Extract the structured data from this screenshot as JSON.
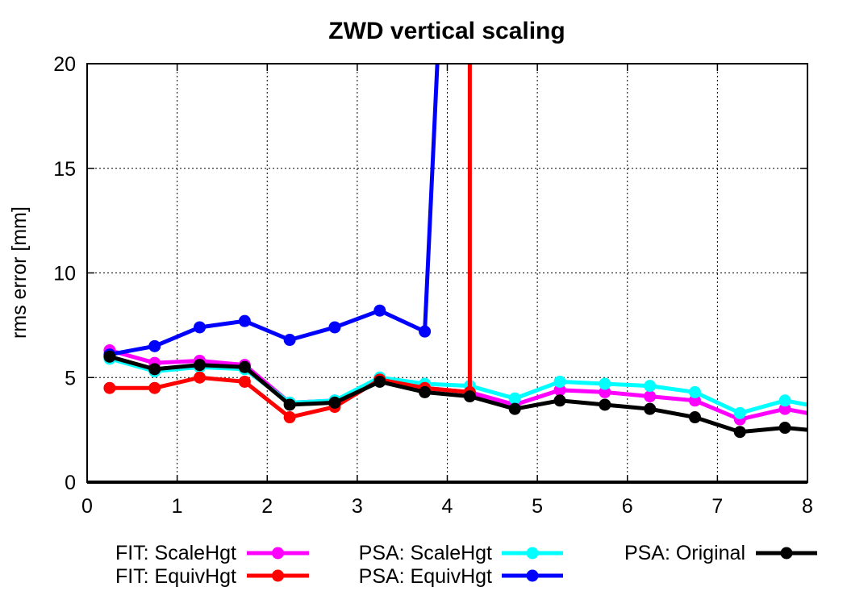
{
  "chart_data": {
    "type": "line",
    "title": "ZWD vertical scaling",
    "xlabel": "",
    "ylabel": "rms error [mm]",
    "xlim": [
      0,
      8
    ],
    "ylim": [
      0,
      20
    ],
    "x_ticks": [
      0,
      1,
      2,
      3,
      4,
      5,
      6,
      7,
      8
    ],
    "y_ticks": [
      0,
      5,
      10,
      15,
      20
    ],
    "grid": true,
    "legend_position": "bottom",
    "series": [
      {
        "name": "FIT: ScaleHgt",
        "color": "#ff00ff",
        "x": [
          0.25,
          0.75,
          1.25,
          1.75,
          2.25,
          2.75,
          3.25,
          3.75,
          4.25,
          4.75,
          5.25,
          5.75,
          6.25,
          6.75,
          7.25,
          7.75,
          8.0
        ],
        "y": [
          6.3,
          5.7,
          5.8,
          5.6,
          3.8,
          3.9,
          4.9,
          4.5,
          4.3,
          3.7,
          4.4,
          4.3,
          4.1,
          3.9,
          3.0,
          3.5,
          3.3
        ]
      },
      {
        "name": "FIT: EquivHgt",
        "color": "#ff0000",
        "x": [
          0.25,
          0.75,
          1.25,
          1.75,
          2.25,
          2.75,
          3.25,
          3.75,
          4.25,
          4.25
        ],
        "y": [
          4.5,
          4.5,
          5.0,
          4.8,
          3.1,
          3.6,
          4.9,
          4.5,
          4.3,
          21.0
        ]
      },
      {
        "name": "PSA: ScaleHgt",
        "color": "#00ffff",
        "x": [
          0.25,
          0.75,
          1.25,
          1.75,
          2.25,
          2.75,
          3.25,
          3.75,
          4.25,
          4.75,
          5.25,
          5.75,
          6.25,
          6.75,
          7.25,
          7.75,
          8.0
        ],
        "y": [
          5.9,
          5.3,
          5.5,
          5.4,
          3.8,
          3.9,
          5.0,
          4.7,
          4.6,
          4.0,
          4.8,
          4.7,
          4.6,
          4.3,
          3.3,
          3.9,
          3.7
        ]
      },
      {
        "name": "PSA: EquivHgt",
        "color": "#0000ff",
        "x": [
          0.25,
          0.75,
          1.25,
          1.75,
          2.25,
          2.75,
          3.25,
          3.75,
          3.9
        ],
        "y": [
          6.1,
          6.5,
          7.4,
          7.7,
          6.8,
          7.4,
          8.2,
          7.2,
          21.0
        ]
      },
      {
        "name": "PSA: Original",
        "color": "#000000",
        "x": [
          0.25,
          0.75,
          1.25,
          1.75,
          2.25,
          2.75,
          3.25,
          3.75,
          4.25,
          4.75,
          5.25,
          5.75,
          6.25,
          6.75,
          7.25,
          7.75,
          8.0
        ],
        "y": [
          6.0,
          5.4,
          5.6,
          5.5,
          3.7,
          3.8,
          4.8,
          4.3,
          4.1,
          3.5,
          3.9,
          3.7,
          3.5,
          3.1,
          2.4,
          2.6,
          2.5
        ]
      }
    ]
  }
}
